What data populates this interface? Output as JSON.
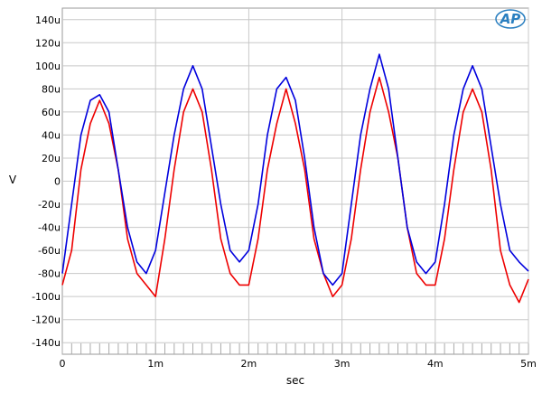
{
  "chart_data": {
    "type": "line",
    "title": "",
    "xlabel": "sec",
    "ylabel": "V",
    "xlim": [
      0,
      0.005
    ],
    "ylim": [
      -0.00015,
      0.00015
    ],
    "x_ticks": [
      0,
      0.001,
      0.002,
      0.003,
      0.004,
      0.005
    ],
    "x_tick_labels": [
      "0",
      "1m",
      "2m",
      "3m",
      "4m",
      "5m"
    ],
    "y_ticks": [
      0.00014,
      0.00012,
      0.0001,
      8e-05,
      6e-05,
      4e-05,
      2e-05,
      0,
      -2e-05,
      -4e-05,
      -6e-05,
      -8e-05,
      -0.0001,
      -0.00012,
      -0.00014
    ],
    "y_tick_labels": [
      "140u",
      "120u",
      "100u",
      "80u",
      "60u",
      "40u",
      "20u",
      "0",
      "-20u",
      "-40u",
      "-60u",
      "-80u",
      "-100u",
      "-120u",
      "-140u"
    ],
    "grid": true,
    "series": [
      {
        "color": "#0000dd",
        "x": [
          0,
          0.0001,
          0.0002,
          0.0003,
          0.0004,
          0.0005,
          0.0006,
          0.0007,
          0.0008,
          0.0009,
          0.001,
          0.0011,
          0.0012,
          0.0013,
          0.0014,
          0.0015,
          0.0016,
          0.0017,
          0.0018,
          0.0019,
          0.002,
          0.0021,
          0.0022,
          0.0023,
          0.0024,
          0.0025,
          0.0026,
          0.0027,
          0.0028,
          0.0029,
          0.003,
          0.0031,
          0.0032,
          0.0033,
          0.0034,
          0.0035,
          0.0036,
          0.0037,
          0.0038,
          0.0039,
          0.004,
          0.0041,
          0.0042,
          0.0043,
          0.0044,
          0.0045,
          0.0046,
          0.0047,
          0.0048,
          0.0049,
          0.005
        ],
        "y": [
          -8e-05,
          -2e-05,
          4e-05,
          7e-05,
          7.5e-05,
          6e-05,
          1e-05,
          -4e-05,
          -7e-05,
          -8e-05,
          -6e-05,
          -1e-05,
          4e-05,
          8e-05,
          0.0001,
          8e-05,
          3e-05,
          -2e-05,
          -6e-05,
          -7e-05,
          -6e-05,
          -2e-05,
          4e-05,
          8e-05,
          9e-05,
          7e-05,
          2e-05,
          -4e-05,
          -8e-05,
          -9e-05,
          -8e-05,
          -2e-05,
          4e-05,
          8e-05,
          0.00011,
          8e-05,
          2e-05,
          -4e-05,
          -7e-05,
          -8e-05,
          -7e-05,
          -2e-05,
          4e-05,
          8e-05,
          0.0001,
          8e-05,
          3e-05,
          -2e-05,
          -6e-05,
          -7e-05,
          -7.8e-05
        ]
      },
      {
        "color": "#ee0000",
        "x": [
          0,
          0.0001,
          0.0002,
          0.0003,
          0.0004,
          0.0005,
          0.0006,
          0.0007,
          0.0008,
          0.0009,
          0.001,
          0.0011,
          0.0012,
          0.0013,
          0.0014,
          0.0015,
          0.0016,
          0.0017,
          0.0018,
          0.0019,
          0.002,
          0.0021,
          0.0022,
          0.0023,
          0.0024,
          0.0025,
          0.0026,
          0.0027,
          0.0028,
          0.0029,
          0.003,
          0.0031,
          0.0032,
          0.0033,
          0.0034,
          0.0035,
          0.0036,
          0.0037,
          0.0038,
          0.0039,
          0.004,
          0.0041,
          0.0042,
          0.0043,
          0.0044,
          0.0045,
          0.0046,
          0.0047,
          0.0048,
          0.0049,
          0.005
        ],
        "y": [
          -9e-05,
          -6e-05,
          1e-05,
          5e-05,
          7e-05,
          5e-05,
          1e-05,
          -5e-05,
          -8e-05,
          -9e-05,
          -0.0001,
          -5e-05,
          1e-05,
          6e-05,
          8e-05,
          6e-05,
          1e-05,
          -5e-05,
          -8e-05,
          -9e-05,
          -9e-05,
          -5e-05,
          1e-05,
          5e-05,
          8e-05,
          5e-05,
          1e-05,
          -5e-05,
          -8e-05,
          -0.0001,
          -9e-05,
          -5e-05,
          1e-05,
          6e-05,
          9e-05,
          6e-05,
          2e-05,
          -4e-05,
          -8e-05,
          -9e-05,
          -9e-05,
          -5e-05,
          1e-05,
          6e-05,
          8e-05,
          6e-05,
          1e-05,
          -6e-05,
          -9e-05,
          -0.000105,
          -8.5e-05
        ]
      }
    ]
  },
  "logo": {
    "label": "AP"
  }
}
